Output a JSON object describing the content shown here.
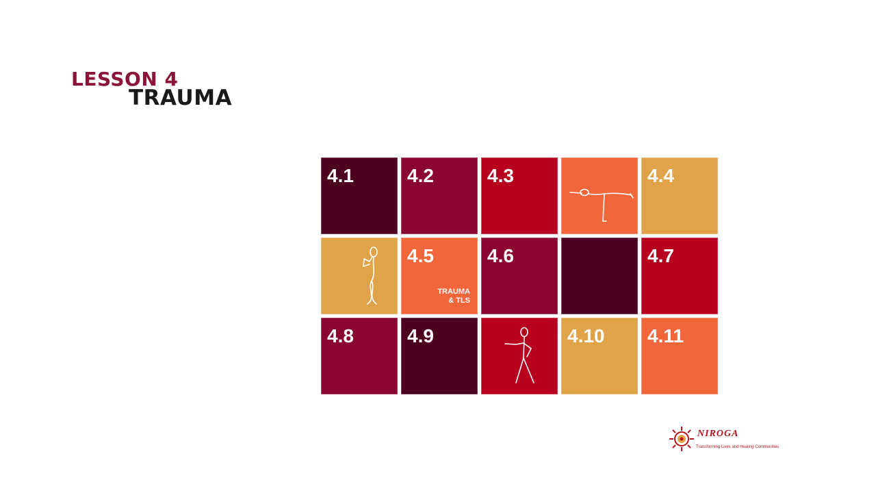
{
  "heading": {
    "lesson": "LESSON 4",
    "topic": "TRAUMA"
  },
  "tiles": [
    {
      "label": "4.1",
      "color": "#4d0020"
    },
    {
      "label": "4.2",
      "color": "#8b0532"
    },
    {
      "label": "4.3",
      "color": "#b8001f"
    },
    {
      "label": "",
      "color": "#f1663a",
      "figure": "stick-figure-balancing-icon"
    },
    {
      "label": "4.4",
      "color": "#e0a348"
    },
    {
      "label": "",
      "color": "#e0a348",
      "figure": "stick-figure-standing-icon"
    },
    {
      "label": "4.5",
      "color": "#f1663a",
      "sub": "TRAUMA\n& TLS"
    },
    {
      "label": "4.6",
      "color": "#8b0532"
    },
    {
      "label": "",
      "color": "#4d0020"
    },
    {
      "label": "4.7",
      "color": "#b8001f"
    },
    {
      "label": "4.8",
      "color": "#8b0532"
    },
    {
      "label": "4.9",
      "color": "#4d0020"
    },
    {
      "label": "",
      "color": "#b8001f",
      "figure": "stick-figure-pose-icon"
    },
    {
      "label": "4.10",
      "color": "#e0a348"
    },
    {
      "label": "4.11",
      "color": "#f1663a"
    }
  ],
  "logo": {
    "brand": "NIROGA",
    "tagline": "Transforming Lives and Healing Communities",
    "color": "#b5121b"
  }
}
